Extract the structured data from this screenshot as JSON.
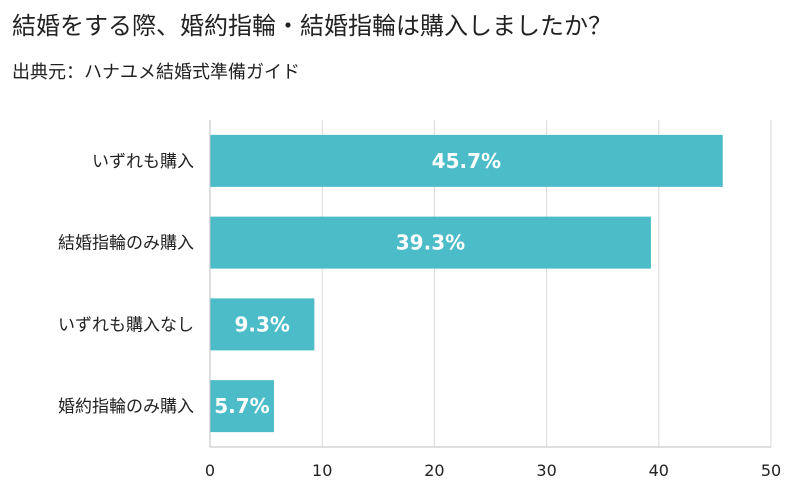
{
  "title": "結婚をする際、婚約指輪・結婚指輪は購入しましたか？",
  "subtitle": "出典元：ハナユメ結婚式準備ガイド",
  "chart_data": {
    "type": "bar",
    "orientation": "horizontal",
    "categories": [
      "いずれも購入",
      "結婚指輪のみ購入",
      "いずれも購入なし",
      "婚約指輪のみ購入"
    ],
    "values": [
      45.7,
      39.3,
      9.3,
      5.7
    ],
    "data_labels": [
      "45.7%",
      "39.3%",
      "9.3%",
      "5.7%"
    ],
    "xlim": [
      0,
      50
    ],
    "xticks": [
      0,
      10,
      20,
      30,
      40,
      50
    ],
    "grid": true,
    "legend": "none",
    "bar_color": "#4bbcc8",
    "grid_color": "#d9d9d9"
  }
}
